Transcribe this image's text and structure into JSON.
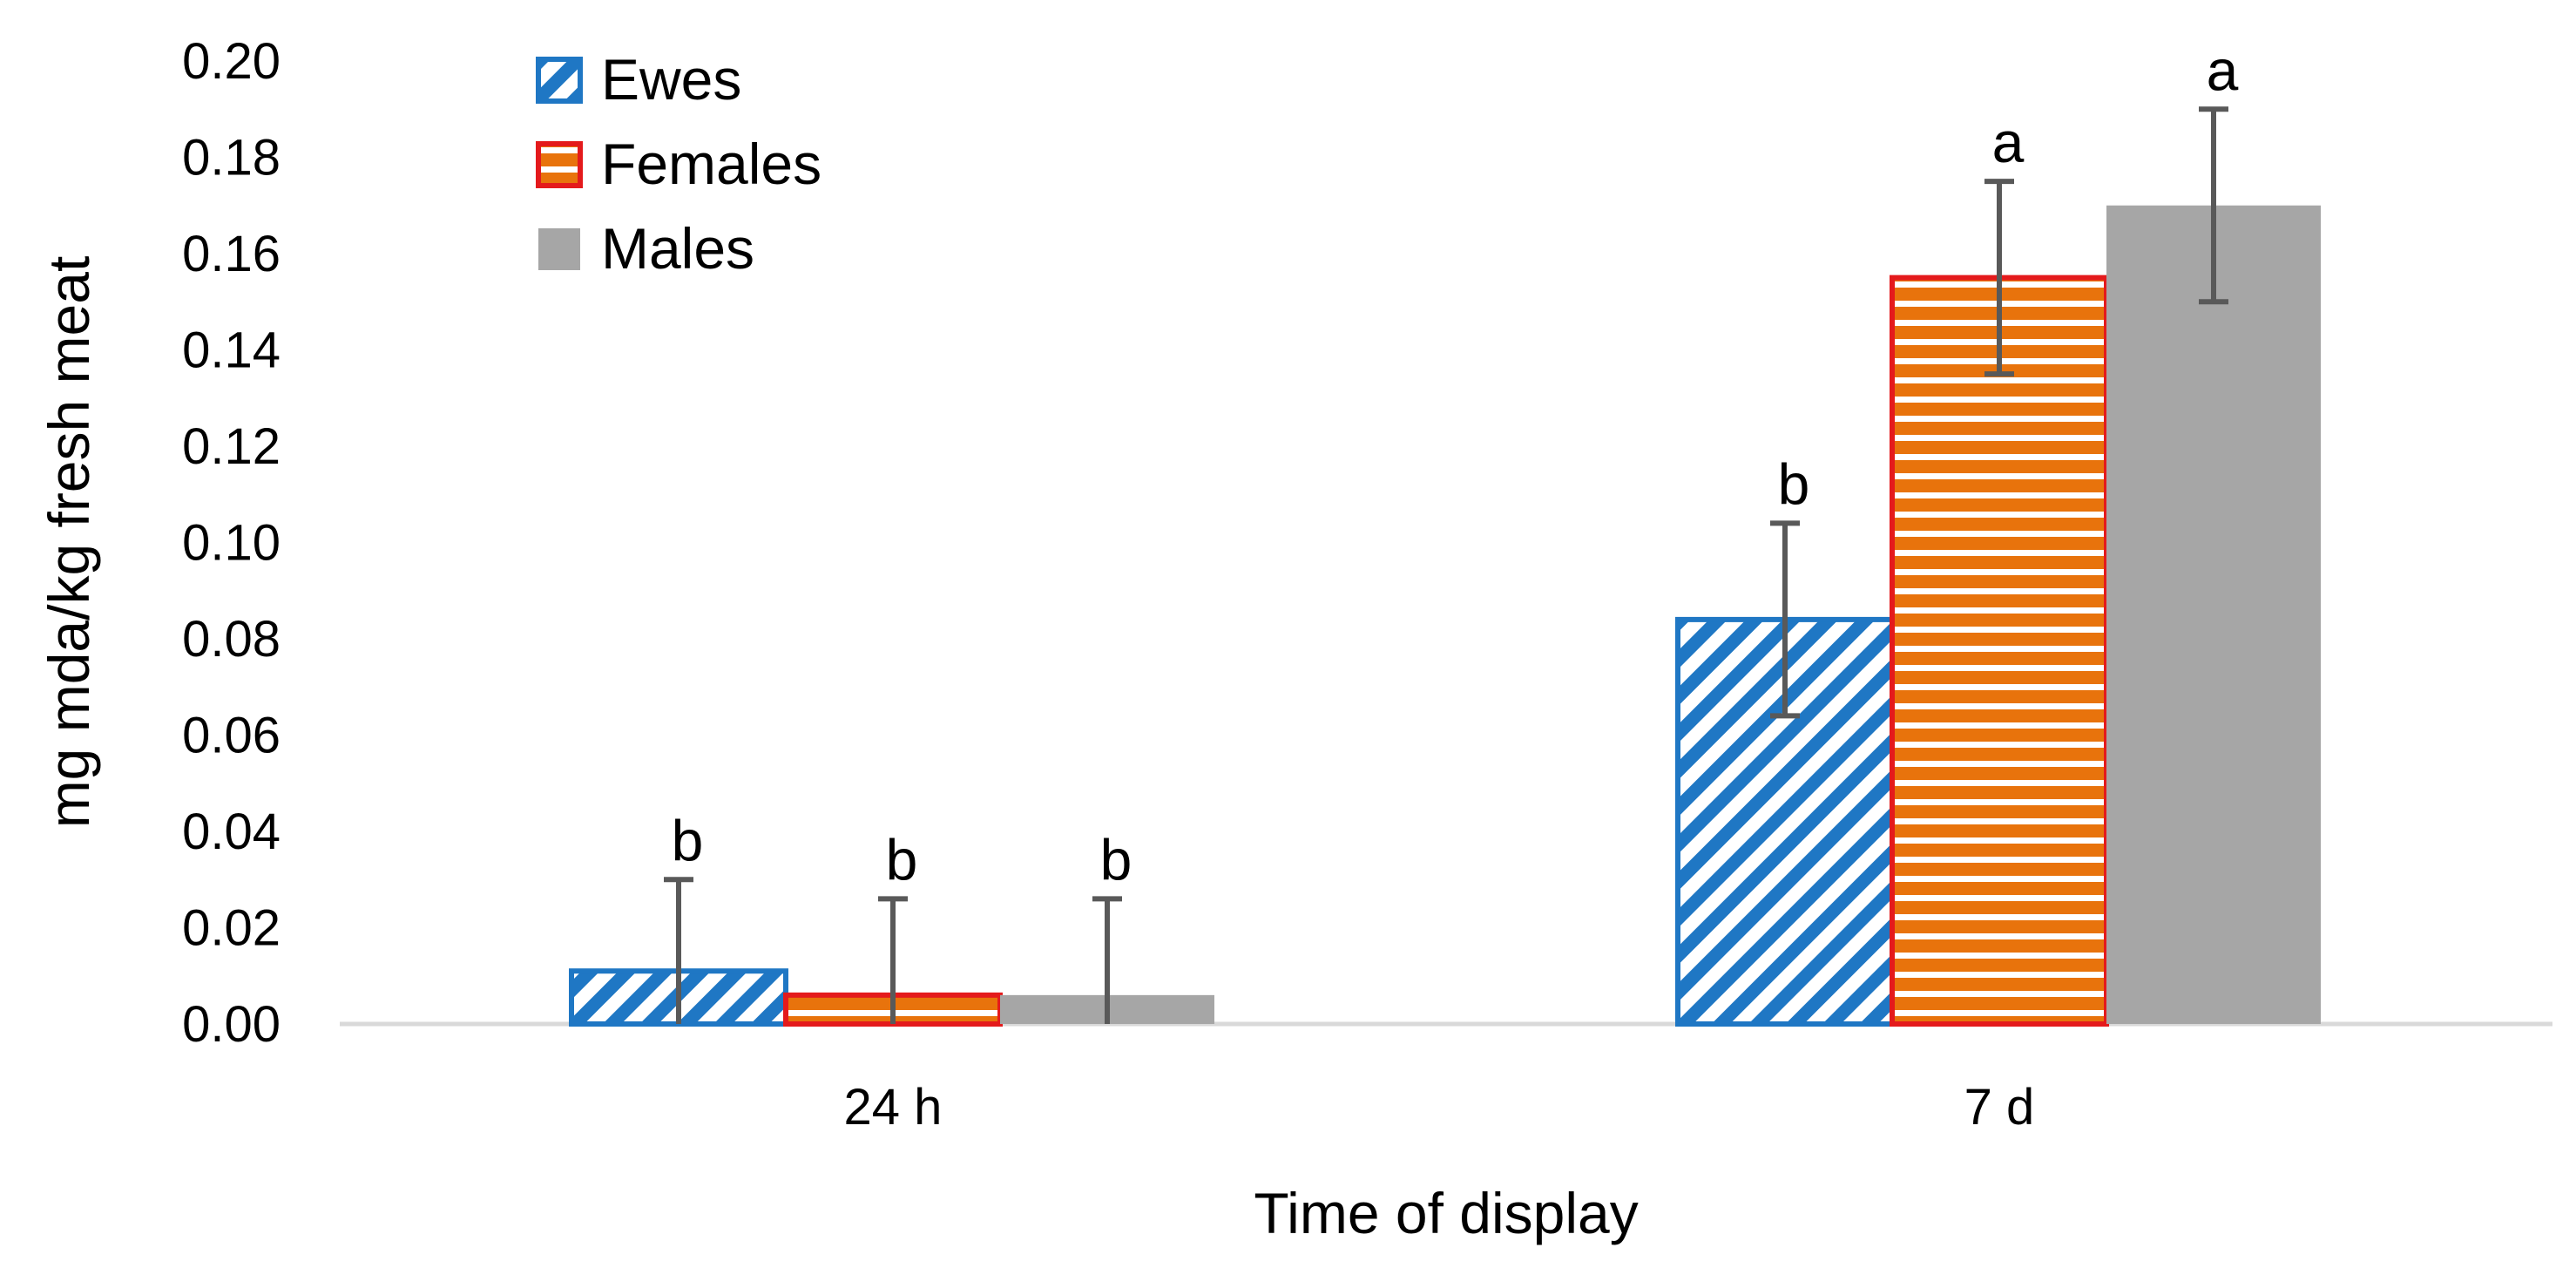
{
  "chart_data": {
    "type": "bar",
    "title": "",
    "xlabel": "Time of display",
    "ylabel": "mg mda/kg fresh meat",
    "categories": [
      "24 h",
      "7 d"
    ],
    "ylim": [
      0,
      0.2
    ],
    "ytick_step": 0.02,
    "ytick_labels": [
      "0.00",
      "0.02",
      "0.04",
      "0.06",
      "0.08",
      "0.10",
      "0.12",
      "0.14",
      "0.16",
      "0.18",
      "0.20"
    ],
    "grid": false,
    "legend_position": "top-left",
    "series": [
      {
        "name": "Ewes",
        "pattern": "diagonal-stripes",
        "color": "#1F77C4",
        "values": [
          0.011,
          0.084
        ],
        "errors": [
          0.019,
          0.02
        ],
        "significance": [
          "b",
          "b"
        ]
      },
      {
        "name": "Females",
        "pattern": "horizontal-stripes",
        "color": "#E8730C",
        "border_color": "#E41A1C",
        "values": [
          0.006,
          0.155
        ],
        "errors": [
          0.02,
          0.02
        ],
        "significance": [
          "b",
          "a"
        ]
      },
      {
        "name": "Males",
        "pattern": "solid",
        "color": "#A6A6A6",
        "values": [
          0.006,
          0.17
        ],
        "errors": [
          0.02,
          0.02
        ],
        "significance": [
          "b",
          "a"
        ]
      }
    ]
  }
}
